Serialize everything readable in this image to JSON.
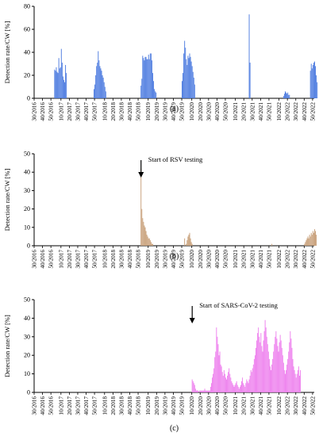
{
  "figure": {
    "x_ticks": [
      "30/2016",
      "40/2016",
      "50/2016",
      "10/2017",
      "20/2017",
      "30/2017",
      "40/2017",
      "50/2017",
      "10/2018",
      "20/2018",
      "30/2018",
      "40/2018",
      "50/2018",
      "10/2019",
      "20/2019",
      "30/2019",
      "40/2019",
      "50/2019",
      "10/2020",
      "20/2020",
      "30/2020",
      "40/2020",
      "50/2020",
      "10/2021",
      "20/2021",
      "30/2021",
      "40/2021",
      "50/2021",
      "10/2022",
      "20/2022",
      "30/2022",
      "40/2022",
      "50/2022"
    ]
  },
  "chart_data": [
    {
      "type": "bar",
      "panel_label": "(a)",
      "ylabel": "Detection rate/CW [%]",
      "ylim": [
        0,
        80
      ],
      "yticks": [
        0,
        20,
        40,
        60,
        80
      ],
      "grid": false,
      "x_axis": "calendar week, 30/2016 to 52/2022",
      "color": "#4f7de0",
      "annotation": null,
      "seasons": [
        {
          "start": "2/2017",
          "values": [
            25,
            24,
            27,
            23,
            22,
            35,
            26,
            27,
            43,
            31,
            19,
            16,
            14,
            29,
            22
          ]
        },
        {
          "start": "49/2017",
          "values": [
            8,
            12,
            20,
            28,
            31,
            41,
            33,
            28,
            26,
            24,
            20,
            18,
            14,
            10,
            6
          ]
        },
        {
          "start": "1/2019",
          "values": [
            11,
            17,
            37,
            35,
            33,
            36,
            36,
            34,
            34,
            38,
            34,
            39,
            39,
            33,
            22,
            15,
            8,
            6,
            5
          ]
        },
        {
          "start": "50/2019",
          "values": [
            15,
            22,
            39,
            50,
            44,
            34,
            29,
            37,
            35,
            39,
            36,
            32,
            28,
            23,
            18,
            12
          ]
        },
        {
          "start": "26/2021",
          "values": [
            73,
            31
          ]
        },
        {
          "start": "15/2022",
          "values": [
            2,
            4,
            6,
            5,
            4,
            5,
            3,
            3
          ]
        },
        {
          "start": "47/2022",
          "values": [
            24,
            30,
            26,
            29,
            31,
            32,
            28,
            20,
            14
          ]
        }
      ]
    },
    {
      "type": "bar",
      "panel_label": "(b)",
      "ylabel": "Detection rate/CW [%]",
      "ylim": [
        0,
        50
      ],
      "yticks": [
        0,
        10,
        20,
        30,
        40,
        50
      ],
      "grid": false,
      "x_axis": "calendar week, 30/2016 to 52/2022",
      "color": "#c8a07a",
      "annotation": {
        "text": "Start of RSV testing",
        "at": "1/2019"
      },
      "seasons": [
        {
          "start": "1/2019",
          "values": [
            42,
            20,
            15,
            13,
            11,
            10,
            8,
            6,
            5,
            4,
            4,
            3,
            2,
            1,
            1
          ]
        },
        {
          "start": "1/2020",
          "values": [
            4,
            0,
            1,
            3,
            5,
            6,
            7,
            4,
            2,
            1
          ]
        },
        {
          "start": "1/2022",
          "values": [
            1
          ]
        },
        {
          "start": "40/2022",
          "values": [
            1,
            2,
            3,
            4,
            5,
            4,
            6,
            5,
            7,
            6,
            8,
            7,
            9,
            8,
            6
          ]
        }
      ]
    },
    {
      "type": "bar",
      "panel_label": "(c)",
      "ylabel": "Detection rate/CW [%]",
      "ylim": [
        0,
        50
      ],
      "yticks": [
        0,
        10,
        20,
        30,
        40,
        50
      ],
      "grid": false,
      "x_axis": "calendar week, 30/2016 to 52/2022",
      "color": "#ee82ee",
      "annotation": {
        "text": "Start of SARS-CoV-2 testing",
        "at": "10/2020"
      },
      "seasons": [
        {
          "start": "10/2020",
          "values": [
            7,
            6,
            5,
            4,
            2,
            1,
            1,
            1,
            0,
            1,
            1,
            1,
            1,
            1,
            1,
            2,
            1,
            1,
            1,
            1,
            1,
            1,
            3,
            5,
            8,
            10,
            13,
            19,
            22,
            35,
            30,
            26,
            20,
            22,
            15,
            14,
            11,
            9,
            12,
            10,
            8,
            7,
            9,
            11,
            13,
            10,
            8,
            6,
            5,
            4,
            3,
            4,
            5,
            6,
            4,
            3,
            2,
            3,
            4,
            6,
            8,
            5,
            4,
            3,
            5,
            7,
            6,
            5,
            7,
            9,
            12,
            11,
            13,
            15,
            18,
            20,
            24,
            28,
            32,
            35,
            30,
            27,
            32,
            25,
            22,
            28,
            33,
            39,
            35,
            30,
            26,
            22,
            18,
            14,
            12,
            15,
            18,
            22,
            26,
            30,
            33,
            29,
            25,
            22,
            27,
            31,
            28,
            24,
            20,
            16,
            12,
            10,
            12,
            15,
            18,
            22,
            27,
            33,
            29,
            24,
            18,
            14,
            12,
            10,
            8,
            10,
            12,
            14,
            9,
            12
          ]
        }
      ]
    }
  ]
}
